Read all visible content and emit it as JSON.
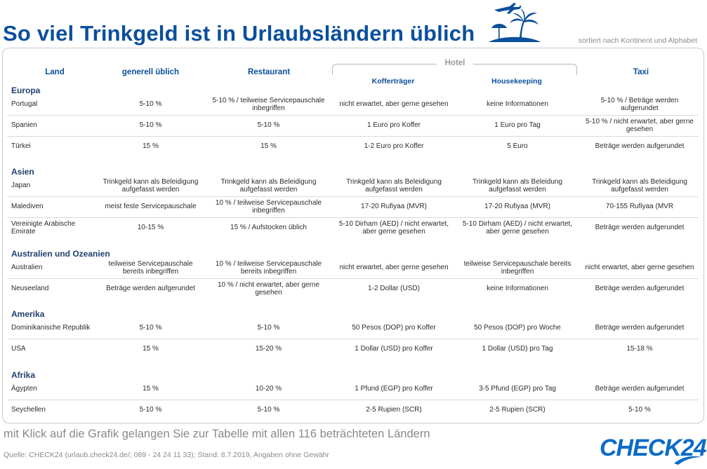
{
  "header": {
    "title": "So viel Trinkgeld ist in Urlaubsländern üblich",
    "subtitle": "sortiert nach Kontinent und Alphabet",
    "logo_icon": "plane-palm-island-icon"
  },
  "table": {
    "hotel_group_label": "Hotel",
    "columns": [
      "Land",
      "generell üblich",
      "Restaurant",
      "Kofferträger",
      "Housekeeping",
      "Taxi"
    ],
    "sections": [
      {
        "name": "Europa",
        "rows": [
          [
            "Portugal",
            "5-10 %",
            "5-10 % / teilweise Servicepauschale inbegriffen",
            "nicht erwartet, aber gerne gesehen",
            "keine Informationen",
            "5-10 % / Beträge werden aufgerundet"
          ],
          [
            "Spanien",
            "5-10 %",
            "5-10 %",
            "1 Euro pro Koffer",
            "1 Euro pro Tag",
            "5-10 % / nicht erwartet, aber gerne gesehen"
          ],
          [
            "Türkei",
            "15 %",
            "15 %",
            "1-2 Euro pro Koffer",
            "5 Euro",
            "Beträge werden aufgerundet"
          ]
        ]
      },
      {
        "name": "Asien",
        "rows": [
          [
            "Japan",
            "Trinkgeld kann als Beleidigung aufgefasst werden",
            "Trinkgeld kann als Beleidigung aufgefasst werden",
            "Trinkgeld kann als Beleidigung aufgefasst werden",
            "Trinkgeld kann als Beleidung aufgefasst werden",
            "Trinkgeld kann als Beleidigung aufgefasst werden"
          ],
          [
            "Malediven",
            "meist feste Servicepauschale",
            "10 % / teilweise Servicepauschale inbegriffen",
            "17-20 Rufiyaa (MVR)",
            "17-20 Rufiyaa (MVR)",
            "70-155 Rufiyaa (MVR"
          ],
          [
            "Vereinigte Arabische Emirate",
            "10-15 %",
            "15 % / Aufstocken üblich",
            "5-10 Dirham (AED) / nicht erwartet, aber gerne gesehen",
            "5-10 Dirham (AED) / nicht erwartet, aber gerne gesehen",
            "Beträge werden aufgerundet"
          ]
        ]
      },
      {
        "name": "Australien und Ozeanien",
        "rows": [
          [
            "Australien",
            "teilweise Servicepauschale bereits inbegriffen",
            "10 % / teilweise Servicepauschale bereits inbegriffen",
            "nicht erwartet, aber gerne gesehen",
            "teilweise Servicepauschale bereits inbegriffen",
            "nicht erwartet, aber gerne gesehen"
          ],
          [
            "Neuseeland",
            "Beträge werden aufgerundet",
            "10 % / nicht erwartet, aber gerne gesehen",
            "1-2 Dollar (USD)",
            "keine Informationen",
            "Beträge werden aufgerundet"
          ]
        ]
      },
      {
        "name": "Amerika",
        "rows": [
          [
            "Dominikanische Republik",
            "5-10 %",
            "5-10 %",
            "50 Pesos (DOP) pro Koffer",
            "50 Pesos (DOP) pro Woche",
            "Beträge werden aufgerundet"
          ],
          [
            "USA",
            "15 %",
            "15-20 %",
            "1 Dollar (USD) pro Koffer",
            "1 Dollar (USD) pro Tag",
            "15-18 %"
          ]
        ]
      },
      {
        "name": "Afrika",
        "rows": [
          [
            "Ägypten",
            "15 %",
            "10-20 %",
            "1 Pfund (EGP) pro Koffer",
            "3-5 Pfund (EGP) pro Tag",
            "Beträge werden aufgerundet"
          ],
          [
            "Seychellen",
            "5-10 %",
            "5-10 %",
            "2-5 Rupien (SCR)",
            "2-5 Rupien (SCR)",
            "5-10 %"
          ]
        ]
      }
    ]
  },
  "footer": {
    "link_text": "mit Klick auf die Grafik gelangen Sie zur Tabelle mit allen 116 beträchteten Ländern",
    "source": "Quelle: CHECK24 (urlaub.check24.de/; 089 - 24 24 11 33); Stand: 8.7.2019, Angaben ohne Gewähr",
    "brand": "CHECK24"
  },
  "colors": {
    "accent_blue": "#0b4f9c",
    "brand_blue": "#0b6bc7",
    "divider": "#d9d9d9"
  }
}
